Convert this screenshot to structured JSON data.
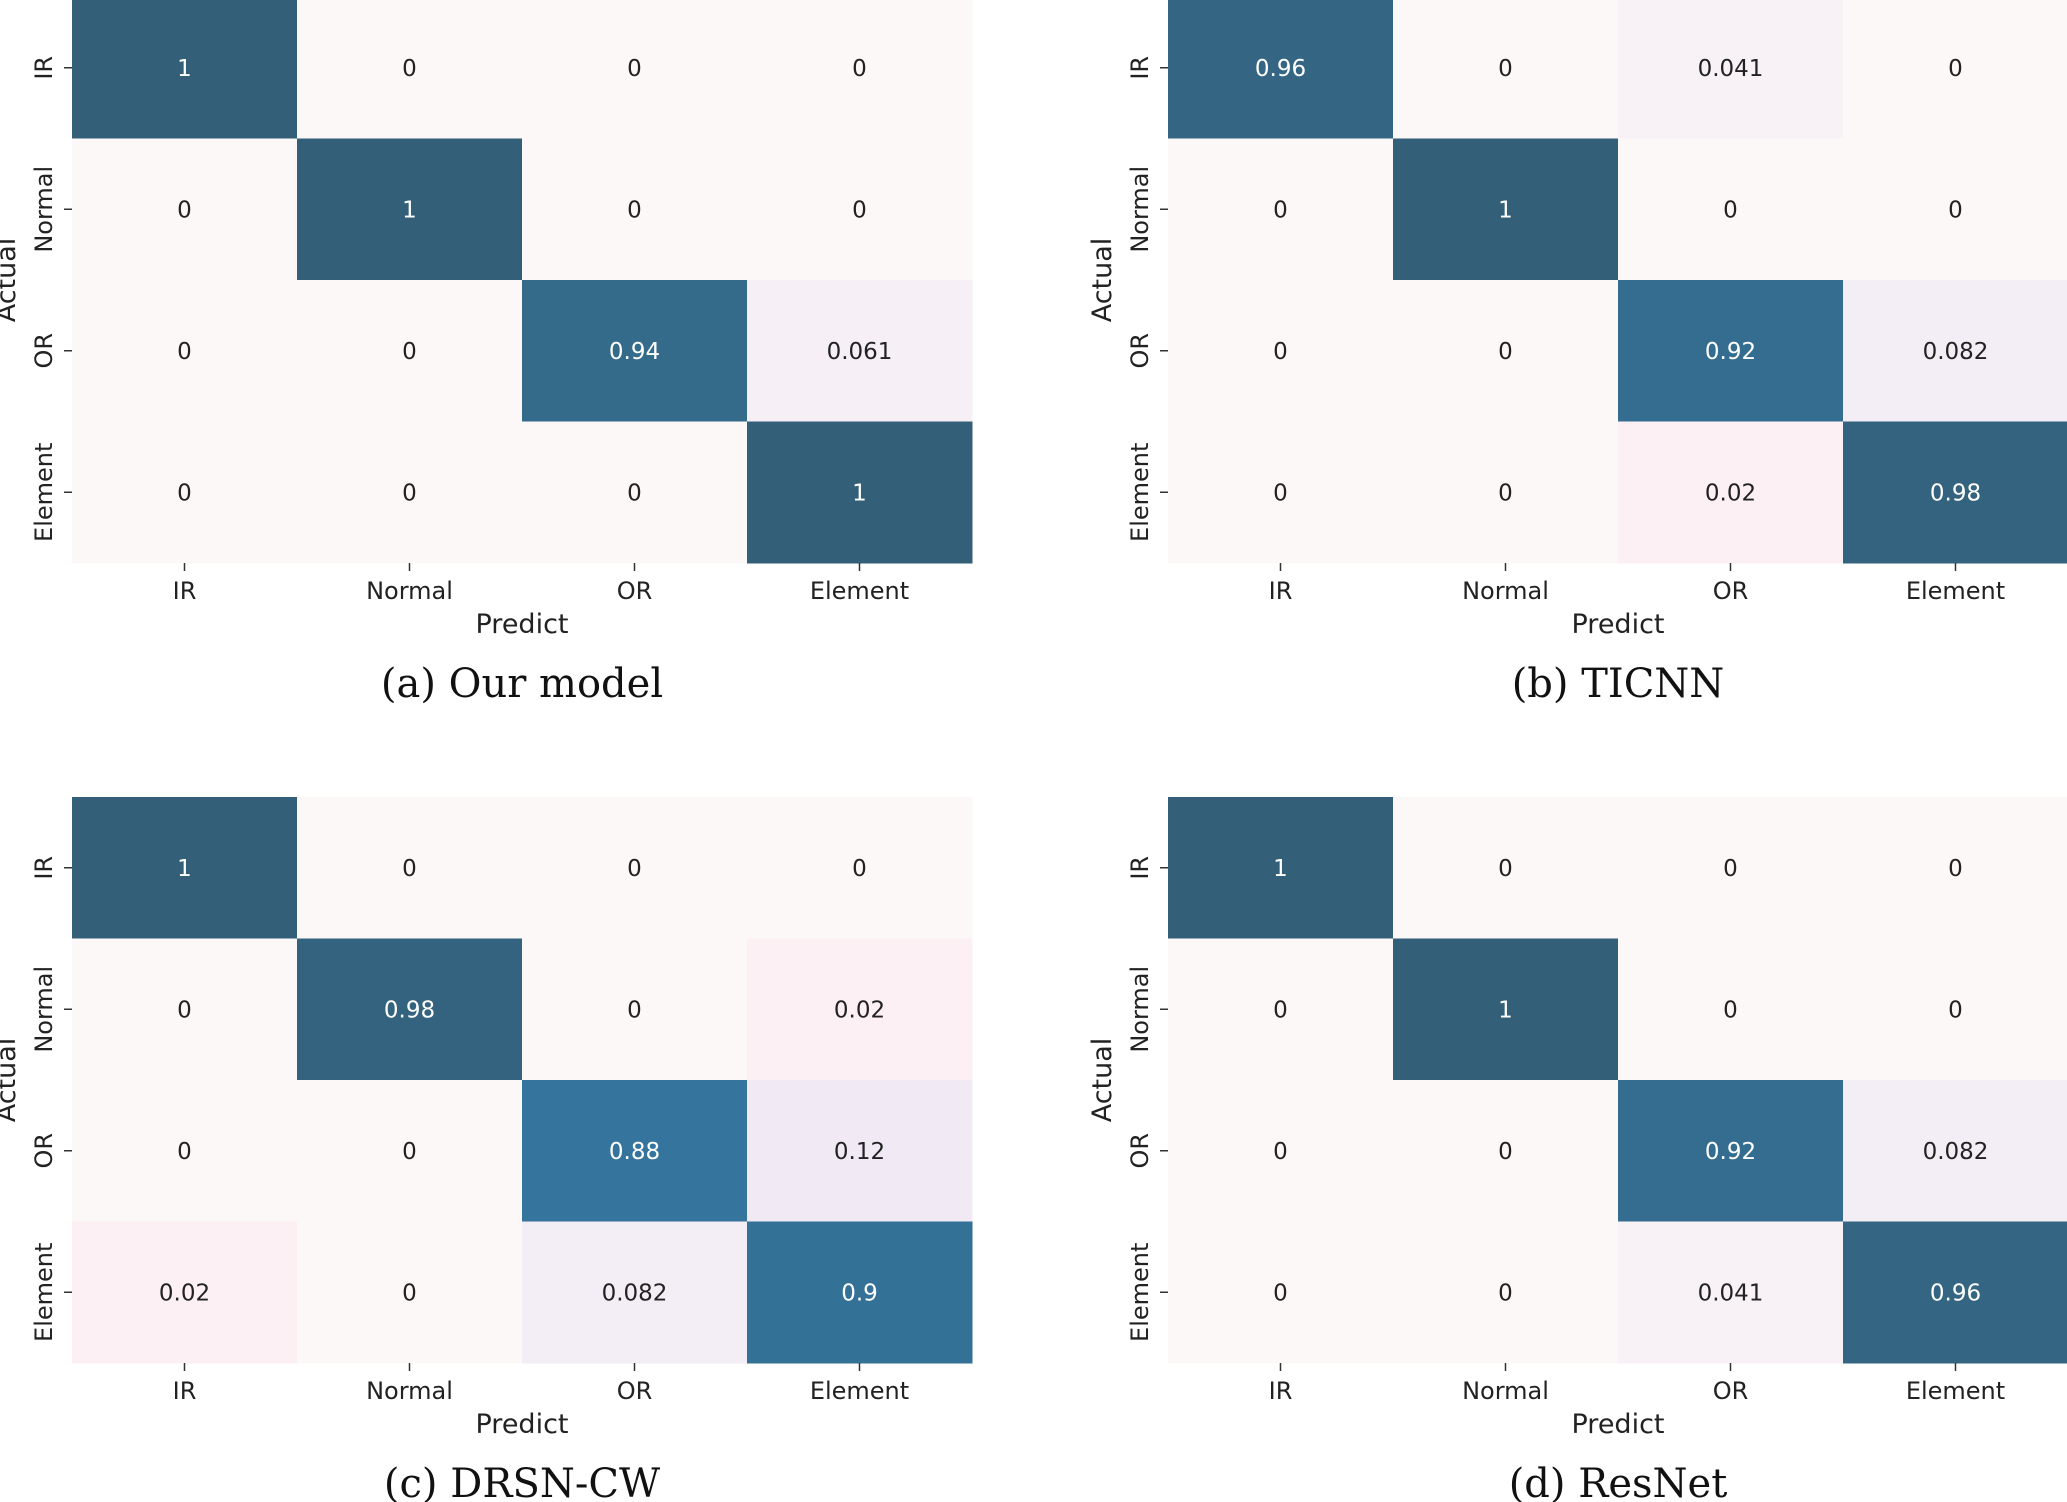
{
  "chart_data": [
    {
      "type": "heatmap",
      "caption": "(a) Our model",
      "xlabel": "Predict",
      "ylabel": "Actual",
      "x_categories": [
        "IR",
        "Normal",
        "OR",
        "Element"
      ],
      "y_categories": [
        "IR",
        "Normal",
        "OR",
        "Element"
      ],
      "values": [
        [
          1,
          0,
          0,
          0
        ],
        [
          0,
          1,
          0,
          0
        ],
        [
          0,
          0,
          0.94,
          0.061
        ],
        [
          0,
          0,
          0,
          1
        ]
      ],
      "labels": [
        [
          "1",
          "0",
          "0",
          "0"
        ],
        [
          "0",
          "1",
          "0",
          "0"
        ],
        [
          "0",
          "0",
          "0.94",
          "0.061"
        ],
        [
          "0",
          "0",
          "0",
          "1"
        ]
      ]
    },
    {
      "type": "heatmap",
      "caption": "(b) TICNN",
      "xlabel": "Predict",
      "ylabel": "Actual",
      "x_categories": [
        "IR",
        "Normal",
        "OR",
        "Element"
      ],
      "y_categories": [
        "IR",
        "Normal",
        "OR",
        "Element"
      ],
      "values": [
        [
          0.96,
          0,
          0.041,
          0
        ],
        [
          0,
          1,
          0,
          0
        ],
        [
          0,
          0,
          0.92,
          0.082
        ],
        [
          0,
          0,
          0.02,
          0.98
        ]
      ],
      "labels": [
        [
          "0.96",
          "0",
          "0.041",
          "0"
        ],
        [
          "0",
          "1",
          "0",
          "0"
        ],
        [
          "0",
          "0",
          "0.92",
          "0.082"
        ],
        [
          "0",
          "0",
          "0.02",
          "0.98"
        ]
      ]
    },
    {
      "type": "heatmap",
      "caption": "(c) DRSN-CW",
      "xlabel": "Predict",
      "ylabel": "Actual",
      "x_categories": [
        "IR",
        "Normal",
        "OR",
        "Element"
      ],
      "y_categories": [
        "IR",
        "Normal",
        "OR",
        "Element"
      ],
      "values": [
        [
          1,
          0,
          0,
          0
        ],
        [
          0,
          0.98,
          0,
          0.02
        ],
        [
          0,
          0,
          0.88,
          0.12
        ],
        [
          0.02,
          0,
          0.082,
          0.9
        ]
      ],
      "labels": [
        [
          "1",
          "0",
          "0",
          "0"
        ],
        [
          "0",
          "0.98",
          "0",
          "0.02"
        ],
        [
          "0",
          "0",
          "0.88",
          "0.12"
        ],
        [
          "0.02",
          "0",
          "0.082",
          "0.9"
        ]
      ]
    },
    {
      "type": "heatmap",
      "caption": "(d) ResNet",
      "xlabel": "Predict",
      "ylabel": "Actual",
      "x_categories": [
        "IR",
        "Normal",
        "OR",
        "Element"
      ],
      "y_categories": [
        "IR",
        "Normal",
        "OR",
        "Element"
      ],
      "values": [
        [
          1,
          0,
          0,
          0
        ],
        [
          0,
          1,
          0,
          0
        ],
        [
          0,
          0,
          0.92,
          0.082
        ],
        [
          0,
          0,
          0.041,
          0.96
        ]
      ],
      "labels": [
        [
          "1",
          "0",
          "0",
          "0"
        ],
        [
          "0",
          "1",
          "0",
          "0"
        ],
        [
          "0",
          "0",
          "0.92",
          "0.082"
        ],
        [
          "0",
          "0",
          "0.041",
          "0.96"
        ]
      ]
    }
  ],
  "colors": {
    "background": "#ffffff",
    "cell_empty": "#fdf8f8",
    "cell_full": "#335f78",
    "cell_mid": "#3578a2",
    "cell_pink": "#fdf0f5",
    "cell_lavender": "#f1eaf5",
    "text_dark": "#222222",
    "text_light": "#ffffff"
  }
}
